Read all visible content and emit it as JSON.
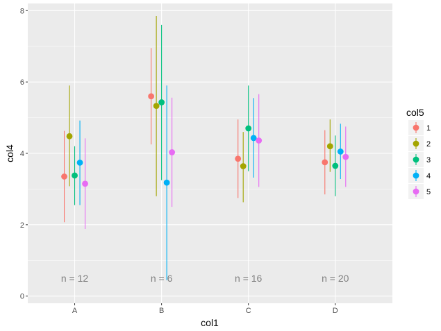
{
  "chart_data": {
    "type": "scatter",
    "xlabel": "col1",
    "ylabel": "col4",
    "categories": [
      "A",
      "B",
      "C",
      "D"
    ],
    "ylim": [
      -0.2,
      8.2
    ],
    "yticks": [
      0,
      2,
      4,
      6,
      8
    ],
    "grid": true,
    "legend": {
      "title": "col5",
      "placement": "right"
    },
    "series": [
      {
        "name": "1",
        "color": "#F8766D",
        "points": [
          {
            "x": "A",
            "y": 3.35,
            "ymin": 2.07,
            "ymax": 4.63
          },
          {
            "x": "B",
            "y": 5.6,
            "ymin": 4.25,
            "ymax": 6.95
          },
          {
            "x": "C",
            "y": 3.85,
            "ymin": 2.75,
            "ymax": 4.95
          },
          {
            "x": "D",
            "y": 3.75,
            "ymin": 2.85,
            "ymax": 4.65
          }
        ]
      },
      {
        "name": "2",
        "color": "#A3A500",
        "points": [
          {
            "x": "A",
            "y": 4.48,
            "ymin": 3.08,
            "ymax": 5.9
          },
          {
            "x": "B",
            "y": 5.33,
            "ymin": 2.8,
            "ymax": 7.85
          },
          {
            "x": "C",
            "y": 3.64,
            "ymin": 2.63,
            "ymax": 4.6
          },
          {
            "x": "D",
            "y": 4.2,
            "ymin": 3.48,
            "ymax": 4.95
          }
        ]
      },
      {
        "name": "3",
        "color": "#00BF7D",
        "points": [
          {
            "x": "A",
            "y": 3.38,
            "ymin": 2.55,
            "ymax": 4.2
          },
          {
            "x": "B",
            "y": 5.43,
            "ymin": 3.25,
            "ymax": 7.6
          },
          {
            "x": "C",
            "y": 4.7,
            "ymin": 3.5,
            "ymax": 5.9
          },
          {
            "x": "D",
            "y": 3.65,
            "ymin": 2.8,
            "ymax": 4.5
          }
        ]
      },
      {
        "name": "4",
        "color": "#00B0F6",
        "points": [
          {
            "x": "A",
            "y": 3.74,
            "ymin": 2.55,
            "ymax": 4.92
          },
          {
            "x": "B",
            "y": 3.18,
            "ymin": 0.45,
            "ymax": 5.9
          },
          {
            "x": "C",
            "y": 4.43,
            "ymin": 3.32,
            "ymax": 5.55
          },
          {
            "x": "D",
            "y": 4.05,
            "ymin": 3.28,
            "ymax": 4.83
          }
        ]
      },
      {
        "name": "5",
        "color": "#E76BF3",
        "points": [
          {
            "x": "A",
            "y": 3.15,
            "ymin": 1.88,
            "ymax": 4.42
          },
          {
            "x": "B",
            "y": 4.03,
            "ymin": 2.5,
            "ymax": 5.56
          },
          {
            "x": "C",
            "y": 4.36,
            "ymin": 3.06,
            "ymax": 5.66
          },
          {
            "x": "D",
            "y": 3.9,
            "ymin": 3.06,
            "ymax": 4.75
          }
        ]
      }
    ],
    "annotations": [
      {
        "x": "A",
        "y": 0.5,
        "text": "n = 12"
      },
      {
        "x": "B",
        "y": 0.5,
        "text": "n = 6"
      },
      {
        "x": "C",
        "y": 0.5,
        "text": "n = 16"
      },
      {
        "x": "D",
        "y": 0.5,
        "text": "n = 20"
      }
    ]
  },
  "colors": {
    "panel_bg": "#EBEBEB",
    "grid": "#FFFFFF",
    "annotation": "#808080"
  }
}
